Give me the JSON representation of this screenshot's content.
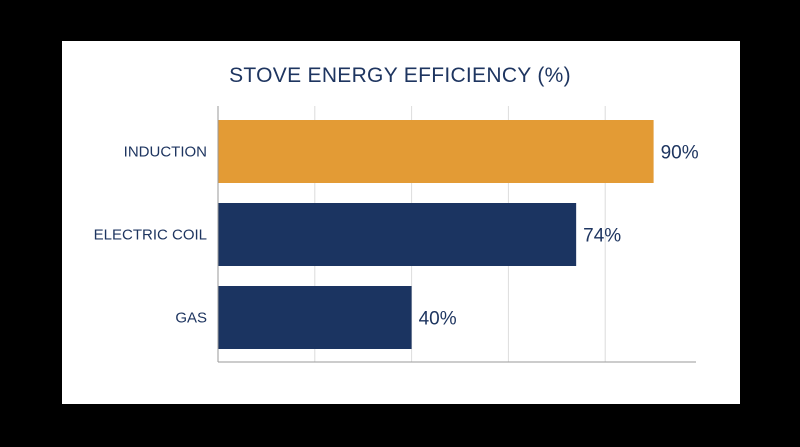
{
  "chart_data": {
    "type": "bar",
    "orientation": "horizontal",
    "title": "STOVE ENERGY EFFICIENCY (%)",
    "categories": [
      "INDUCTION",
      "ELECTRIC COIL",
      "GAS"
    ],
    "values": [
      90,
      74,
      40
    ],
    "value_labels": [
      "90%",
      "74%",
      "40%"
    ],
    "xlim": [
      0,
      100
    ],
    "grid": true,
    "colors": [
      "#e39b35",
      "#1b3461",
      "#1b3461"
    ]
  }
}
